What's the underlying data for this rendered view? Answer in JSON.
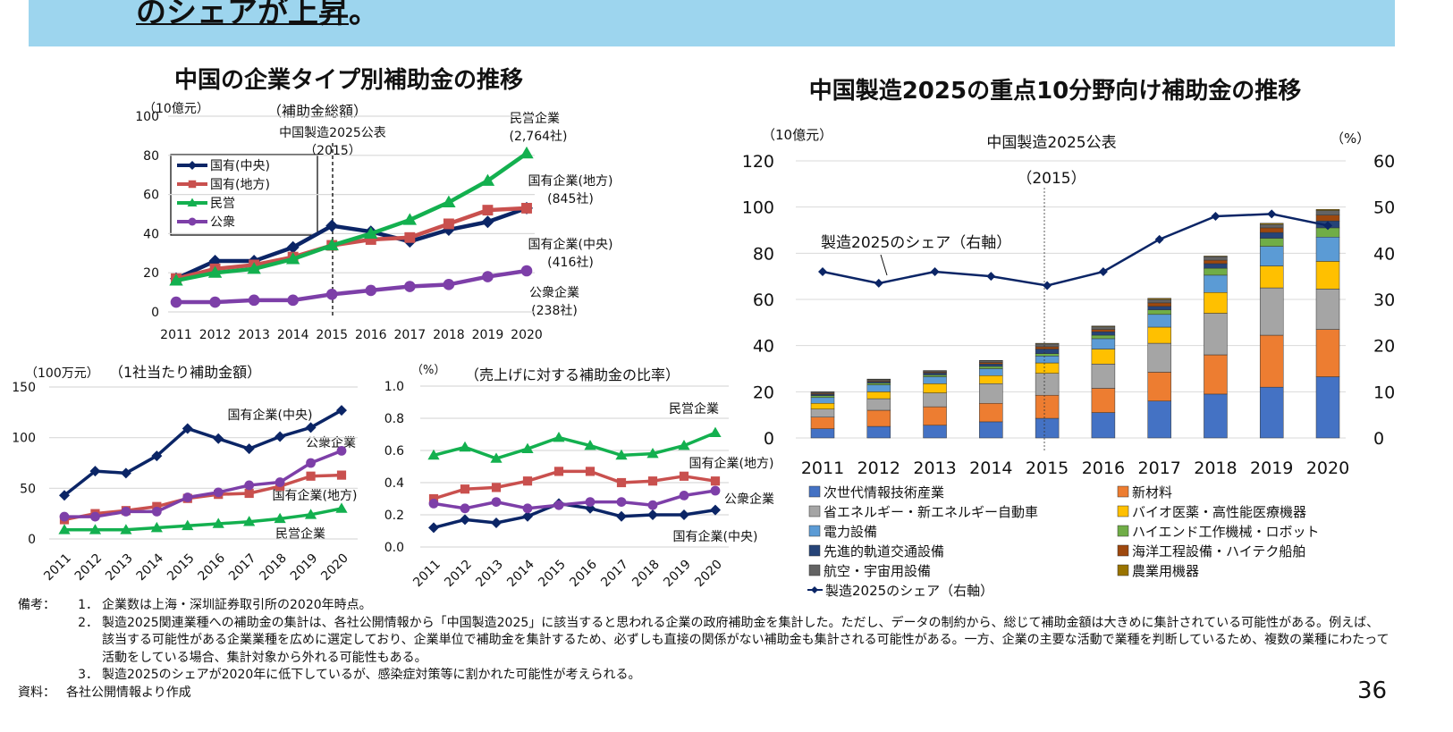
{
  "header": {
    "banner_text": "のシェアが上昇",
    "banner_punct": "。"
  },
  "colors": {
    "banner": "#9dd5ee",
    "central_soe": "#0b2566",
    "local_soe": "#c9504e",
    "private": "#13b04f",
    "public": "#7d3fa8",
    "share_line": "#0b2566"
  },
  "chart_data": [
    {
      "type": "line",
      "title": "中国の企業タイプ別補助金の推移",
      "subtitle": "（補助金総額）",
      "unit_label": "（10億元）",
      "annotation": [
        "中国製造2025公表",
        "（2015）"
      ],
      "categories": [
        "2011",
        "2012",
        "2013",
        "2014",
        "2015",
        "2016",
        "2017",
        "2018",
        "2019",
        "2020"
      ],
      "ylim": [
        0,
        100
      ],
      "yticks": [
        "0",
        "20",
        "40",
        "60",
        "80",
        "100"
      ],
      "grid": true,
      "legend_position": "top-left",
      "series": [
        {
          "name": "国有(中央)",
          "marker": "diamond",
          "color": "#0b2566",
          "values": [
            17,
            26,
            26,
            33,
            44,
            41,
            36,
            42,
            46,
            53
          ],
          "end_label": [
            "国有企業(中央)",
            "(416社)"
          ]
        },
        {
          "name": "国有(地方)",
          "marker": "square",
          "color": "#c9504e",
          "values": [
            17,
            22,
            24,
            28,
            34,
            37,
            38,
            45,
            52,
            53
          ],
          "end_label": [
            "国有企業(地方)",
            "(845社)"
          ]
        },
        {
          "name": "民営",
          "marker": "triangle",
          "color": "#13b04f",
          "values": [
            16,
            20,
            22,
            27,
            34,
            40,
            47,
            56,
            67,
            81
          ],
          "end_label": [
            "民営企業",
            "(2,764社)"
          ]
        },
        {
          "name": "公衆",
          "marker": "circle",
          "color": "#7d3fa8",
          "values": [
            5,
            5,
            6,
            6,
            9,
            11,
            13,
            14,
            18,
            21
          ],
          "end_label": [
            "公衆企業",
            "(238社)"
          ]
        }
      ]
    },
    {
      "type": "line",
      "title": "（1社当たり補助金額）",
      "unit_label": "（100万元）",
      "categories": [
        "2011",
        "2012",
        "2013",
        "2014",
        "2015",
        "2016",
        "2017",
        "2018",
        "2019",
        "2020"
      ],
      "ylim": [
        0,
        150
      ],
      "yticks": [
        "0",
        "50",
        "100",
        "150"
      ],
      "grid": true,
      "series": [
        {
          "label": "国有企業(中央)",
          "marker": "diamond",
          "color": "#0b2566",
          "values": [
            43,
            67,
            65,
            82,
            109,
            99,
            89,
            101,
            110,
            127
          ]
        },
        {
          "label": "国有企業(地方)",
          "marker": "square",
          "color": "#c9504e",
          "values": [
            19,
            25,
            28,
            32,
            40,
            44,
            45,
            52,
            62,
            63
          ]
        },
        {
          "label": "民営企業",
          "marker": "triangle",
          "color": "#13b04f",
          "values": [
            9,
            9,
            9,
            11,
            13,
            15,
            17,
            20,
            24,
            30
          ]
        },
        {
          "label": "公衆企業",
          "marker": "circle",
          "color": "#7d3fa8",
          "values": [
            22,
            22,
            27,
            27,
            41,
            46,
            53,
            56,
            75,
            87
          ]
        }
      ]
    },
    {
      "type": "line",
      "title": "（売上げに対する補助金の比率）",
      "unit_label": "（%）",
      "categories": [
        "2011",
        "2012",
        "2013",
        "2014",
        "2015",
        "2016",
        "2017",
        "2018",
        "2019",
        "2020"
      ],
      "ylim": [
        0,
        1.0
      ],
      "yticks": [
        "0.0",
        "0.2",
        "0.4",
        "0.6",
        "0.8",
        "1.0"
      ],
      "grid": true,
      "series": [
        {
          "label": "国有企業(中央)",
          "marker": "diamond",
          "color": "#0b2566",
          "values": [
            0.12,
            0.17,
            0.15,
            0.19,
            0.27,
            0.24,
            0.19,
            0.2,
            0.2,
            0.23
          ]
        },
        {
          "label": "国有企業(地方)",
          "marker": "square",
          "color": "#c9504e",
          "values": [
            0.3,
            0.36,
            0.37,
            0.41,
            0.47,
            0.47,
            0.4,
            0.41,
            0.44,
            0.41
          ]
        },
        {
          "label": "民営企業",
          "marker": "triangle",
          "color": "#13b04f",
          "values": [
            0.57,
            0.62,
            0.55,
            0.61,
            0.68,
            0.63,
            0.57,
            0.58,
            0.63,
            0.71
          ]
        },
        {
          "label": "公衆企業",
          "marker": "circle",
          "color": "#7d3fa8",
          "values": [
            0.27,
            0.24,
            0.28,
            0.24,
            0.26,
            0.28,
            0.28,
            0.26,
            0.32,
            0.35
          ]
        }
      ]
    },
    {
      "type": "bar",
      "stacked": true,
      "title": "中国製造2025の重点10分野向け補助金の推移",
      "unit_label_left": "（10億元）",
      "unit_label_right": "（%）",
      "annotation": [
        "中国製造2025公表",
        "（2015）"
      ],
      "line_annotation": "製造2025のシェア（右軸）",
      "categories": [
        "2011",
        "2012",
        "2013",
        "2014",
        "2015",
        "2016",
        "2017",
        "2018",
        "2019",
        "2020"
      ],
      "ylim": [
        0,
        120
      ],
      "yticks": [
        "0",
        "20",
        "40",
        "60",
        "80",
        "100",
        "120"
      ],
      "y2lim": [
        0,
        60
      ],
      "y2ticks": [
        "0",
        "10",
        "20",
        "30",
        "40",
        "50",
        "60"
      ],
      "grid": true,
      "legend_position": "bottom",
      "series": [
        {
          "name": "次世代情報技術産業",
          "color": "#4472c4",
          "values": [
            4,
            5,
            5.5,
            7,
            8.5,
            11,
            16,
            19,
            22,
            26.5
          ]
        },
        {
          "name": "新材料",
          "color": "#ed7d31",
          "values": [
            5,
            7,
            8,
            8,
            10,
            10.5,
            12.5,
            17,
            22.5,
            20.5
          ]
        },
        {
          "name": "省エネルギー・新エネルギー自動車",
          "color": "#a5a5a5",
          "values": [
            3.5,
            5,
            6,
            8.5,
            9.5,
            10.5,
            12.5,
            18,
            20.5,
            17.5
          ]
        },
        {
          "name": "バイオ医薬・高性能医療機器",
          "color": "#ffc000",
          "values": [
            2.5,
            3,
            4,
            3.5,
            4.5,
            6.5,
            7,
            9,
            9.5,
            12
          ]
        },
        {
          "name": "電力設備",
          "color": "#5b9bd5",
          "values": [
            2.5,
            3,
            3,
            3,
            3,
            4.5,
            5.5,
            7.5,
            8.5,
            10.5
          ]
        },
        {
          "name": "ハイエンド工作機械・ロボット",
          "color": "#70ad47",
          "values": [
            0.8,
            0.8,
            0.8,
            1,
            1,
            1.5,
            2,
            3,
            3.5,
            4
          ]
        },
        {
          "name": "先進的軌道交通設備",
          "color": "#264478",
          "values": [
            0.6,
            0.6,
            0.8,
            1,
            2,
            1.5,
            1.5,
            2,
            2.5,
            3
          ]
        },
        {
          "name": "海洋工程設備・ハイテク船舶",
          "color": "#9e480e",
          "values": [
            0.4,
            0.4,
            0.4,
            0.7,
            1,
            1,
            1.5,
            1.5,
            2,
            2.5
          ]
        },
        {
          "name": "航空・宇宙用設備",
          "color": "#636363",
          "values": [
            0.5,
            0.5,
            0.5,
            0.7,
            1.2,
            1.2,
            1.5,
            1.5,
            1.5,
            2
          ]
        },
        {
          "name": "農業用機器",
          "color": "#997300",
          "values": [
            0.2,
            0.2,
            0.2,
            0.2,
            0.3,
            0.3,
            0.5,
            0.3,
            0.5,
            0.5
          ]
        }
      ],
      "line_series": {
        "name": "製造2025のシェア（右軸）",
        "axis": "right",
        "color": "#0b2566",
        "values": [
          36,
          33.5,
          36,
          35,
          33,
          36,
          43,
          48,
          48.5,
          46
        ]
      }
    }
  ],
  "notes": {
    "head": "備考：",
    "items": [
      {
        "num": "1．",
        "text": "企業数は上海・深圳証券取引所の2020年時点。"
      },
      {
        "num": "2．",
        "text": "製造2025関連業種への補助金の集計は、各社公開情報から「中国製造2025」に該当すると思われる企業の政府補助金を集計した。ただし、データの制約から、総じて補助金額は大きめに集計されている可能性がある。例えば、該当する可能性がある企業業種を広めに選定しており、企業単位で補助金を集計するため、必ずしも直接の関係がない補助金も集計される可能性がある。一方、企業の主要な活動で業種を判断しているため、複数の業種にわたって活動をしている場合、集計対象から外れる可能性もある。"
      },
      {
        "num": "3．",
        "text": "製造2025のシェアが2020年に低下しているが、感染症対策等に割かれた可能性が考えられる。"
      }
    ],
    "source_head": "資料：",
    "source": "各社公開情報より作成"
  },
  "page_number": "36"
}
